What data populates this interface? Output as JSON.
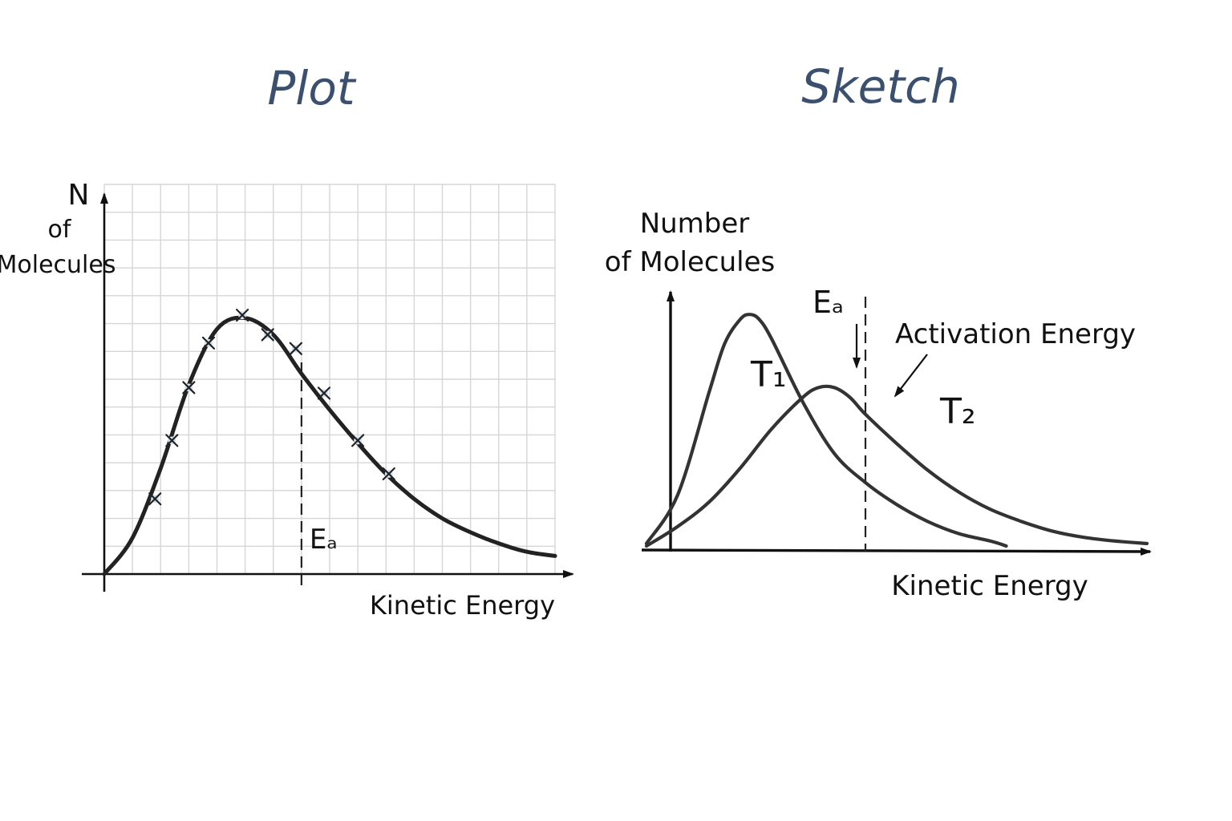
{
  "chart_data": [
    {
      "type": "scatter",
      "title": "Plot",
      "xlabel": "Kinetic Energy",
      "ylabel_lines": [
        "N",
        "of",
        "Molecules"
      ],
      "grid": true,
      "xlim": [
        0,
        16
      ],
      "ylim": [
        0,
        14
      ],
      "points": [
        {
          "x": 1.8,
          "y": 2.7
        },
        {
          "x": 2.4,
          "y": 4.8
        },
        {
          "x": 3.0,
          "y": 6.7
        },
        {
          "x": 3.7,
          "y": 8.3
        },
        {
          "x": 4.9,
          "y": 9.3
        },
        {
          "x": 5.8,
          "y": 8.6
        },
        {
          "x": 6.8,
          "y": 8.1
        },
        {
          "x": 7.8,
          "y": 6.5
        },
        {
          "x": 9.0,
          "y": 4.8
        },
        {
          "x": 10.1,
          "y": 3.6
        }
      ],
      "curve": {
        "x": [
          0,
          1,
          2,
          3,
          4,
          5,
          6,
          7,
          8,
          9,
          10,
          11,
          12,
          13,
          14,
          15,
          16
        ],
        "y": [
          0,
          1.3,
          3.8,
          6.8,
          8.8,
          9.2,
          8.6,
          7.2,
          5.9,
          4.7,
          3.6,
          2.7,
          2.0,
          1.5,
          1.1,
          0.8,
          0.65
        ]
      },
      "annotations": [
        {
          "text": "Eₐ",
          "x": 7.0,
          "type": "vertical-dashed-line"
        }
      ]
    },
    {
      "type": "line",
      "title": "Sketch",
      "xlabel": "Kinetic Energy",
      "ylabel_lines": [
        "Number",
        "of Molecules"
      ],
      "grid": false,
      "xlim": [
        0,
        16
      ],
      "ylim": [
        0,
        10
      ],
      "series": [
        {
          "name": "T₁",
          "x": [
            0,
            1,
            2,
            2.5,
            3,
            3.3,
            3.6,
            4,
            5,
            6,
            7,
            8,
            9,
            10,
            11,
            11.5
          ],
          "y": [
            0.2,
            2.2,
            6.4,
            8.4,
            9.4,
            9.6,
            9.4,
            8.6,
            6.0,
            3.9,
            2.7,
            1.8,
            1.1,
            0.6,
            0.3,
            0.1
          ]
        },
        {
          "name": "T₂",
          "x": [
            0,
            1,
            2,
            3,
            4,
            5,
            5.5,
            6,
            6.5,
            7,
            8,
            9,
            10,
            11,
            12,
            13,
            14,
            15,
            16
          ],
          "y": [
            0.1,
            0.9,
            1.9,
            3.3,
            4.9,
            6.2,
            6.6,
            6.6,
            6.2,
            5.5,
            4.3,
            3.2,
            2.3,
            1.6,
            1.1,
            0.7,
            0.45,
            0.3,
            0.2
          ]
        }
      ],
      "annotations": [
        {
          "text": "Eₐ",
          "x": 7.0,
          "type": "vertical-dashed-line"
        },
        {
          "text": "Activation Energy"
        }
      ]
    }
  ]
}
